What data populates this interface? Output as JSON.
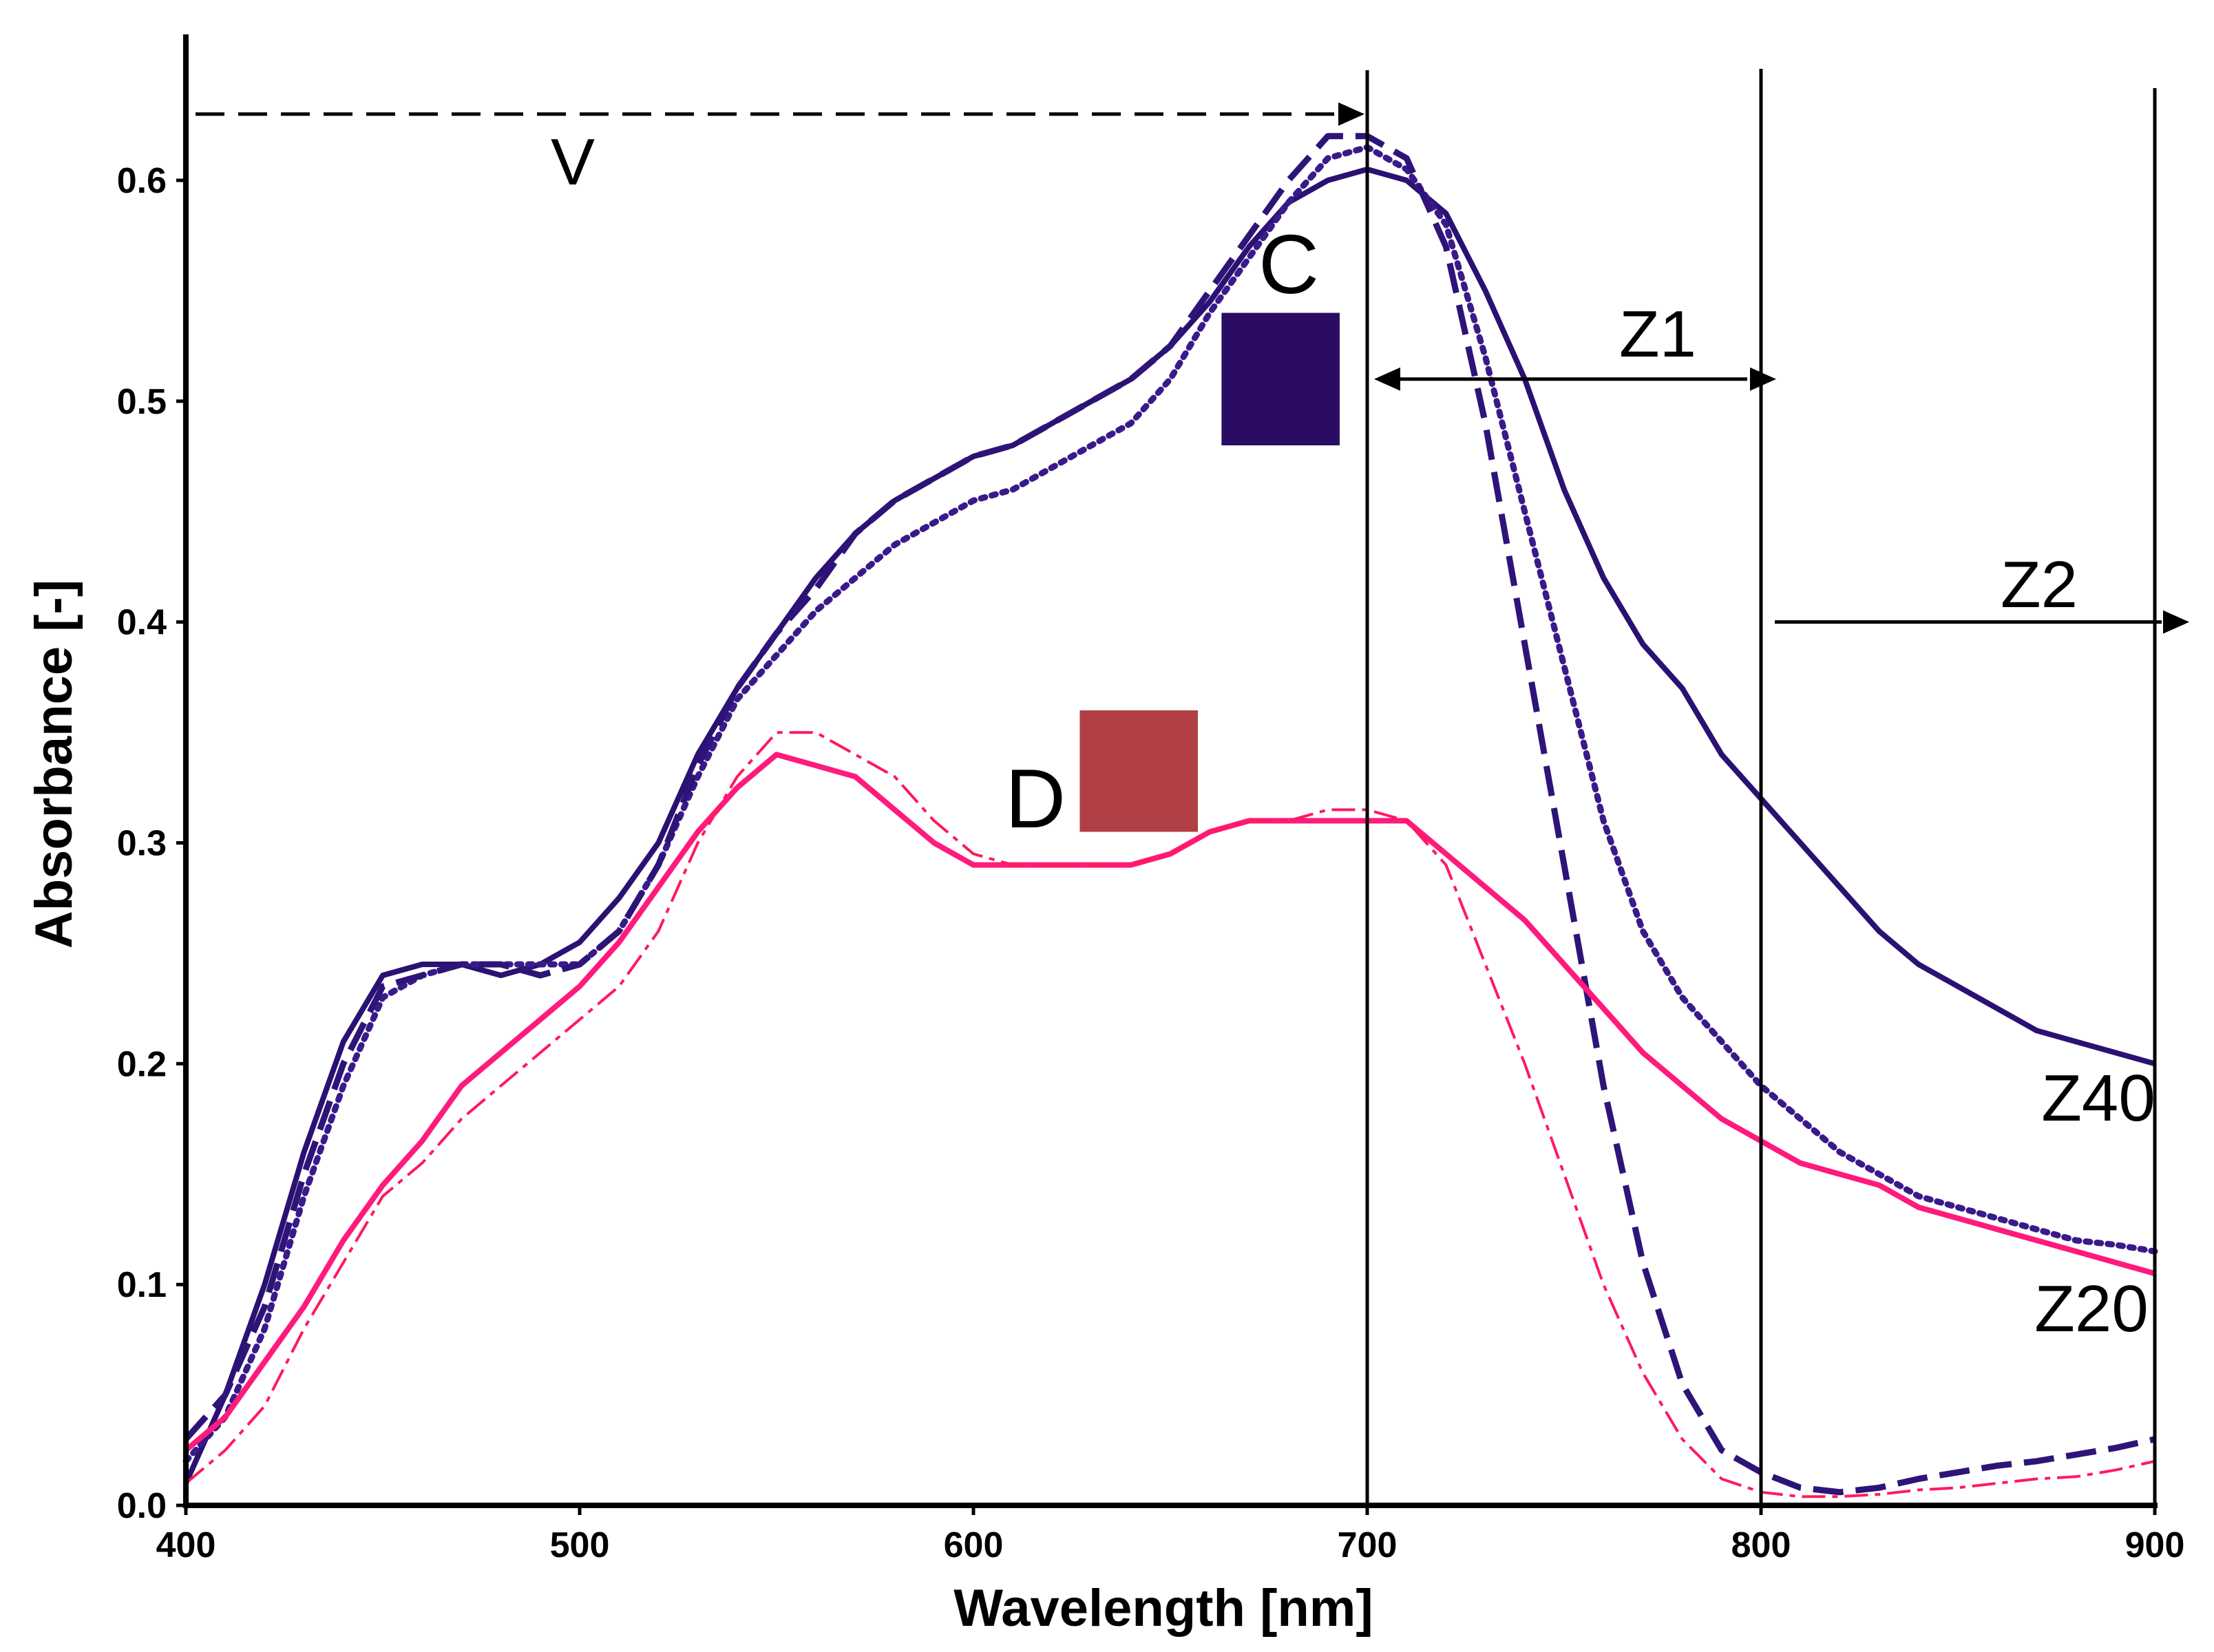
{
  "chart_data": {
    "type": "line",
    "title": "",
    "xlabel": "Wavelength [nm]",
    "ylabel": "Absorbance [-]",
    "xlim": [
      400,
      900
    ],
    "ylim": [
      0,
      0.65
    ],
    "x_ticks": [
      400,
      500,
      600,
      700,
      800,
      900
    ],
    "y_ticks": [
      0.0,
      0.1,
      0.2,
      0.3,
      0.4,
      0.5,
      0.6
    ],
    "x_tick_labels": [
      "400",
      "500",
      "600",
      "700",
      "800",
      "900"
    ],
    "y_tick_labels": [
      "0.0",
      "0.1",
      "0.2",
      "0.3",
      "0.4",
      "0.5",
      "0.6"
    ],
    "grid": false,
    "series": [
      {
        "name": "Z40 solid (C)",
        "color": "#2a1172",
        "style": "solid",
        "x": [
          400,
          410,
          420,
          430,
          440,
          450,
          460,
          470,
          480,
          490,
          500,
          510,
          520,
          530,
          540,
          550,
          560,
          570,
          580,
          590,
          600,
          610,
          620,
          630,
          640,
          650,
          660,
          670,
          680,
          690,
          700,
          710,
          720,
          730,
          740,
          750,
          760,
          770,
          780,
          790,
          800,
          810,
          820,
          830,
          840,
          850,
          860,
          870,
          880,
          890,
          900
        ],
        "y": [
          0.01,
          0.05,
          0.1,
          0.16,
          0.21,
          0.24,
          0.245,
          0.245,
          0.24,
          0.245,
          0.255,
          0.275,
          0.3,
          0.34,
          0.37,
          0.395,
          0.42,
          0.44,
          0.455,
          0.465,
          0.475,
          0.48,
          0.49,
          0.5,
          0.51,
          0.525,
          0.545,
          0.57,
          0.59,
          0.6,
          0.605,
          0.6,
          0.585,
          0.55,
          0.51,
          0.46,
          0.42,
          0.39,
          0.37,
          0.34,
          0.32,
          0.3,
          0.28,
          0.26,
          0.245,
          0.235,
          0.225,
          0.215,
          0.21,
          0.205,
          0.2
        ]
      },
      {
        "name": "C dotted",
        "color": "#3a1a8a",
        "style": "dotted",
        "x": [
          400,
          410,
          420,
          430,
          440,
          450,
          460,
          470,
          480,
          490,
          500,
          510,
          520,
          530,
          540,
          550,
          560,
          570,
          580,
          590,
          600,
          610,
          620,
          630,
          640,
          650,
          660,
          670,
          680,
          690,
          700,
          710,
          720,
          730,
          740,
          750,
          760,
          770,
          780,
          790,
          800,
          810,
          820,
          830,
          840,
          850,
          860,
          870,
          880,
          890,
          900
        ],
        "y": [
          0.02,
          0.04,
          0.08,
          0.14,
          0.19,
          0.23,
          0.24,
          0.245,
          0.245,
          0.245,
          0.245,
          0.26,
          0.29,
          0.33,
          0.365,
          0.385,
          0.405,
          0.42,
          0.435,
          0.445,
          0.455,
          0.46,
          0.47,
          0.48,
          0.49,
          0.51,
          0.54,
          0.565,
          0.59,
          0.61,
          0.615,
          0.605,
          0.58,
          0.52,
          0.45,
          0.38,
          0.31,
          0.26,
          0.23,
          0.21,
          0.19,
          0.175,
          0.16,
          0.15,
          0.14,
          0.135,
          0.13,
          0.125,
          0.12,
          0.118,
          0.115
        ]
      },
      {
        "name": "C dashed",
        "color": "#2e1478",
        "style": "dashed",
        "x": [
          400,
          410,
          420,
          430,
          440,
          450,
          460,
          470,
          480,
          490,
          500,
          510,
          520,
          530,
          540,
          550,
          560,
          570,
          580,
          590,
          600,
          610,
          620,
          630,
          640,
          650,
          660,
          670,
          680,
          690,
          700,
          710,
          720,
          730,
          740,
          750,
          760,
          770,
          780,
          790,
          800,
          810,
          820,
          830,
          840,
          850,
          860,
          870,
          880,
          890,
          900
        ],
        "y": [
          0.03,
          0.05,
          0.09,
          0.15,
          0.2,
          0.235,
          0.24,
          0.245,
          0.245,
          0.24,
          0.245,
          0.26,
          0.29,
          0.335,
          0.37,
          0.395,
          0.415,
          0.44,
          0.455,
          0.465,
          0.475,
          0.48,
          0.49,
          0.5,
          0.51,
          0.525,
          0.55,
          0.575,
          0.6,
          0.62,
          0.62,
          0.61,
          0.57,
          0.49,
          0.39,
          0.29,
          0.19,
          0.11,
          0.055,
          0.025,
          0.015,
          0.008,
          0.006,
          0.008,
          0.012,
          0.015,
          0.018,
          0.02,
          0.023,
          0.026,
          0.03
        ]
      },
      {
        "name": "Z20 solid (D)",
        "color": "#ff1a7c",
        "style": "solid",
        "x": [
          400,
          410,
          420,
          430,
          440,
          450,
          460,
          470,
          480,
          490,
          500,
          510,
          520,
          530,
          540,
          550,
          560,
          570,
          580,
          590,
          600,
          610,
          620,
          630,
          640,
          650,
          660,
          670,
          680,
          690,
          700,
          710,
          720,
          730,
          740,
          750,
          760,
          770,
          780,
          790,
          800,
          810,
          820,
          830,
          840,
          850,
          860,
          870,
          880,
          890,
          900
        ],
        "y": [
          0.025,
          0.04,
          0.065,
          0.09,
          0.12,
          0.145,
          0.165,
          0.19,
          0.205,
          0.22,
          0.235,
          0.255,
          0.28,
          0.305,
          0.325,
          0.34,
          0.335,
          0.33,
          0.315,
          0.3,
          0.29,
          0.29,
          0.29,
          0.29,
          0.29,
          0.295,
          0.305,
          0.31,
          0.31,
          0.31,
          0.31,
          0.31,
          0.295,
          0.28,
          0.265,
          0.245,
          0.225,
          0.205,
          0.19,
          0.175,
          0.165,
          0.155,
          0.15,
          0.145,
          0.135,
          0.13,
          0.125,
          0.12,
          0.115,
          0.11,
          0.105
        ]
      },
      {
        "name": "D dash-dot",
        "color": "#ff1a5c",
        "style": "dashdot",
        "x": [
          400,
          410,
          420,
          430,
          440,
          450,
          460,
          470,
          480,
          490,
          500,
          510,
          520,
          530,
          540,
          550,
          560,
          570,
          580,
          590,
          600,
          610,
          620,
          630,
          640,
          650,
          660,
          670,
          680,
          690,
          700,
          710,
          720,
          730,
          740,
          750,
          760,
          770,
          780,
          790,
          800,
          810,
          820,
          830,
          840,
          850,
          860,
          870,
          880,
          890,
          900
        ],
        "y": [
          0.01,
          0.025,
          0.045,
          0.08,
          0.11,
          0.14,
          0.155,
          0.175,
          0.19,
          0.205,
          0.22,
          0.235,
          0.26,
          0.3,
          0.33,
          0.35,
          0.35,
          0.34,
          0.33,
          0.31,
          0.295,
          0.29,
          0.29,
          0.29,
          0.29,
          0.295,
          0.305,
          0.31,
          0.31,
          0.315,
          0.315,
          0.31,
          0.29,
          0.245,
          0.2,
          0.15,
          0.1,
          0.06,
          0.03,
          0.012,
          0.006,
          0.004,
          0.004,
          0.005,
          0.007,
          0.008,
          0.01,
          0.012,
          0.013,
          0.016,
          0.02
        ]
      }
    ],
    "annotations": {
      "v": "V",
      "z1": "Z1",
      "z2": "Z2",
      "z40": "Z40",
      "z20": "Z20",
      "c": "C",
      "d": "D"
    },
    "swatches": {
      "c_color": "#2a0d63",
      "d_color": "#b23f45"
    },
    "reference_lines_x": [
      700,
      800,
      900
    ],
    "arrows": {
      "v_range": [
        400,
        700
      ],
      "v_level": 0.63,
      "z1_range": [
        700,
        800
      ],
      "z1_level": 0.51,
      "z2_range": [
        800,
        900
      ],
      "z2_level": 0.4
    },
    "swatch_positions": {
      "c_range_x": [
        663,
        693
      ],
      "c_range_y": [
        0.48,
        0.54
      ],
      "d_range_x": [
        627,
        657
      ],
      "d_range_y": [
        0.305,
        0.36
      ]
    }
  }
}
